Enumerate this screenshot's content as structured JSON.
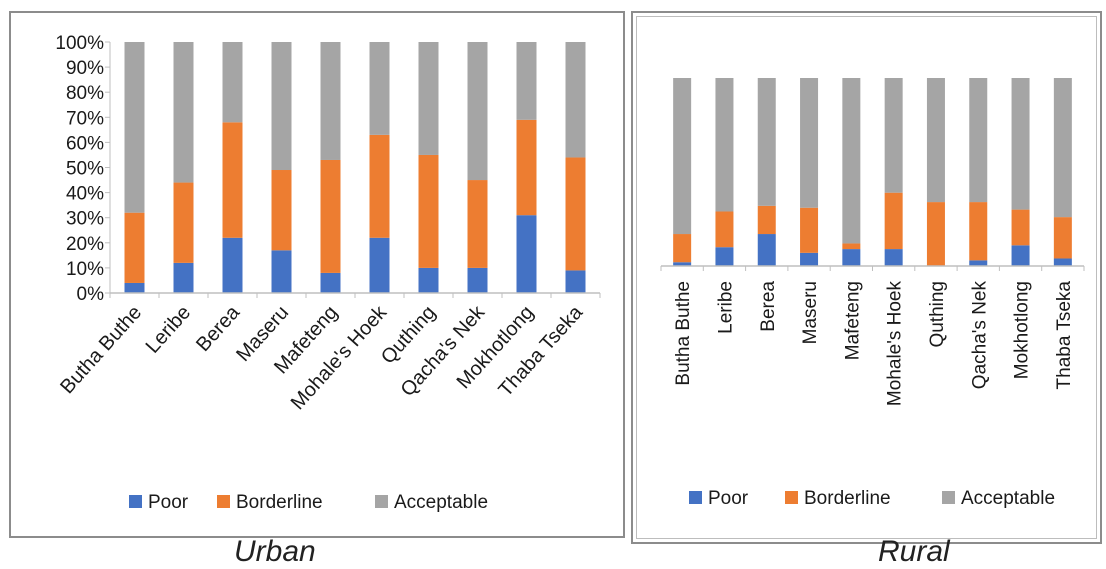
{
  "colors": {
    "poor": "#4472c4",
    "borderline": "#ed7d31",
    "acceptable": "#a5a5a5",
    "axis": "#bfbfbf",
    "text": "#1a1a1a"
  },
  "captions": {
    "urban": "Urban",
    "rural": "Rural"
  },
  "chart_data": [
    {
      "type": "bar",
      "stacked": true,
      "panel": "Urban",
      "ylim": [
        0,
        100
      ],
      "y_ticks": [
        "0%",
        "10%",
        "20%",
        "30%",
        "40%",
        "50%",
        "60%",
        "70%",
        "80%",
        "90%",
        "100%"
      ],
      "categories": [
        "Butha Buthe",
        "Leribe",
        "Berea",
        "Maseru",
        "Mafeteng",
        "Mohale's Hoek",
        "Quthing",
        "Qacha's Nek",
        "Mokhotlong",
        "Thaba Tseka"
      ],
      "series": [
        {
          "name": "Poor",
          "values": [
            4,
            12,
            22,
            17,
            8,
            22,
            10,
            10,
            31,
            9
          ]
        },
        {
          "name": "Borderline",
          "values": [
            28,
            32,
            46,
            32,
            45,
            41,
            45,
            35,
            38,
            45
          ]
        },
        {
          "name": "Acceptable",
          "values": [
            68,
            56,
            32,
            51,
            47,
            37,
            45,
            55,
            31,
            46
          ]
        }
      ],
      "legend": "bottom"
    },
    {
      "type": "bar",
      "stacked": true,
      "panel": "Rural",
      "ylim": [
        0,
        100
      ],
      "y_ticks": [],
      "categories": [
        "Butha Buthe",
        "Leribe",
        "Berea",
        "Maseru",
        "Mafeteng",
        "Mohale's Hoek",
        "Quthing",
        "Qacha's Nek",
        "Mokhotlong",
        "Thaba Tseka"
      ],
      "series": [
        {
          "name": "Poor",
          "values": [
            2,
            10,
            17,
            7,
            9,
            9,
            0,
            3,
            11,
            4
          ]
        },
        {
          "name": "Borderline",
          "values": [
            15,
            19,
            15,
            24,
            3,
            30,
            34,
            31,
            19,
            22
          ]
        },
        {
          "name": "Acceptable",
          "values": [
            83,
            71,
            68,
            69,
            88,
            61,
            66,
            66,
            70,
            74
          ]
        }
      ],
      "legend": "bottom"
    }
  ]
}
